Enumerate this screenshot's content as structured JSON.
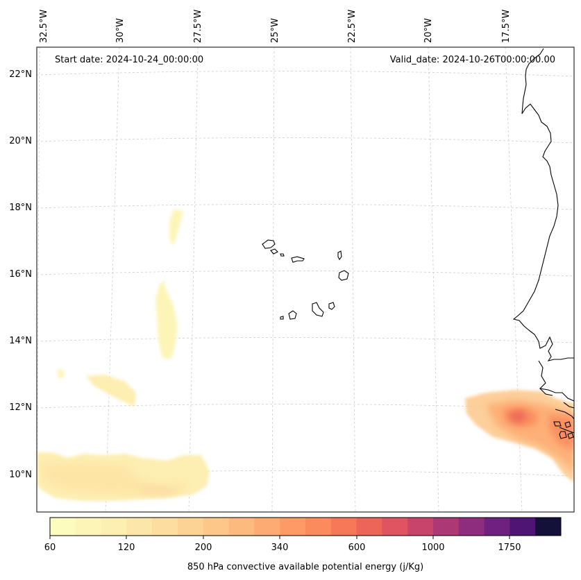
{
  "map": {
    "start_date_text": "Start date: 2024-10-24_00:00:00",
    "valid_date_text": "Valid_date: 2024-10-26T00:00:00.00",
    "lon_labels": [
      "32.5°W",
      "30°W",
      "27.5°W",
      "25°W",
      "22.5°W",
      "20°W",
      "17.5°W"
    ],
    "lat_labels": [
      "22°N",
      "20°N",
      "18°N",
      "16°N",
      "14°N",
      "12°N",
      "10°N"
    ],
    "coastline_color": "#000000",
    "gridline_color": "#cccccc"
  },
  "colorbar": {
    "label": "850 hPa convective available potential energy (j/Kg)",
    "tick_labels": [
      "60",
      "120",
      "200",
      "340",
      "600",
      "1000",
      "1750"
    ],
    "colors": [
      "#fdfcbf",
      "#fdf5b8",
      "#fdeeb1",
      "#fde6a9",
      "#fddda0",
      "#fdd295",
      "#fdc789",
      "#fdba7f",
      "#fdab72",
      "#fd9a66",
      "#fb8a5d",
      "#f67858",
      "#ec6558",
      "#df5460",
      "#c9446b",
      "#ad3876",
      "#8e2d7d",
      "#6e217f",
      "#4e1575",
      "#13103a"
    ]
  }
}
